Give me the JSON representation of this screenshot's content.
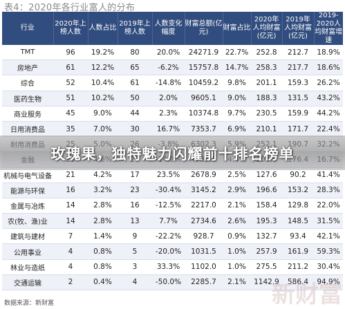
{
  "title": "表4：2020年各行业富人的分布",
  "headline": "玫瑰果，独特魅力闪耀前十排名榜单",
  "source": "数据来源：新财富",
  "watermark": "新财富",
  "columns": [
    "行业",
    "2020年上榜人数",
    "人数占比",
    "2019年上榜人数",
    "人数变化幅度",
    "财富总额(亿元)",
    "财富占比",
    "2020年人均财富(亿元)",
    "2019年人均财富(亿元)",
    "2019-2020人均财富增速"
  ],
  "rows": [
    [
      "TMT",
      "96",
      "19.2%",
      "80",
      "20.0%",
      "24271.9",
      "22.7%",
      "252.8",
      "212.7",
      "18.9%"
    ],
    [
      "房地产",
      "61",
      "12.2%",
      "65",
      "-6.2%",
      "15757.8",
      "14.7%",
      "258.3",
      "217.7",
      "18.6%"
    ],
    [
      "综合",
      "52",
      "10.4%",
      "61",
      "-14.8%",
      "10459.2",
      "9.8%",
      "201.1",
      "159.3",
      "26.2%"
    ],
    [
      "医药生物",
      "51",
      "10.2%",
      "50",
      "2.0%",
      "9605.1",
      "9.0%",
      "188.3",
      "131.5",
      "43.2%"
    ],
    [
      "商业服务",
      "45",
      "9.0%",
      "44",
      "2.3%",
      "10374.8",
      "9.7%",
      "230.5",
      "159.9",
      "44.2%"
    ],
    [
      "日用消费品",
      "35",
      "7.0%",
      "30",
      "16.7%",
      "7353.7",
      "6.9%",
      "210.1",
      "171.7",
      "22.4%"
    ],
    [
      "耐用消费品",
      "25",
      "5.0%",
      "26",
      "-3.8%",
      "6302.3",
      "5.9%",
      "252.1",
      "190.7",
      "32.2%"
    ],
    [
      "金融",
      "23",
      "4.6%",
      "27",
      "-14.8%",
      "4735.5",
      "4.4%",
      "205.9",
      "176.4",
      "16.7%"
    ],
    [
      "机械与电气设备",
      "21",
      "4.2%",
      "17",
      "23.5%",
      "2678.9",
      "2.5%",
      "127.6",
      "90.2",
      "41.4%"
    ],
    [
      "能源与环保",
      "16",
      "3.2%",
      "23",
      "-30.4%",
      "3145.2",
      "2.9%",
      "196.6",
      "153.2",
      "28.3%"
    ],
    [
      "金属与冶炼",
      "14",
      "2.8%",
      "16",
      "-12.5%",
      "2217.0",
      "2.1%",
      "158.4",
      "129.8",
      "22.0%"
    ],
    [
      "农(牧、渔)业",
      "14",
      "2.8%",
      "13",
      "7.7%",
      "2734.6",
      "2.6%",
      "195.3",
      "148.5",
      "31.5%"
    ],
    [
      "建筑与建材",
      "7",
      "1.4%",
      "9",
      "-22.2%",
      "928.7",
      "0.9%",
      "132.7",
      "93.4",
      "42.1%"
    ],
    [
      "公用事业",
      "4",
      "0.8%",
      "5",
      "-20.0%",
      "1031.5",
      "1.0%",
      "257.9",
      "161.9",
      "59.3%"
    ],
    [
      "林业与造纸",
      "4",
      "0.8%",
      "3",
      "33.3%",
      "1102.0",
      "1.0%",
      "275.5",
      "211.2",
      "30.4%"
    ],
    [
      "交通运输",
      "2",
      "0.4%",
      "4",
      "-50.0%",
      "2285.7",
      "2.1%",
      "1142.9",
      "586.4",
      "94.9%"
    ]
  ]
}
